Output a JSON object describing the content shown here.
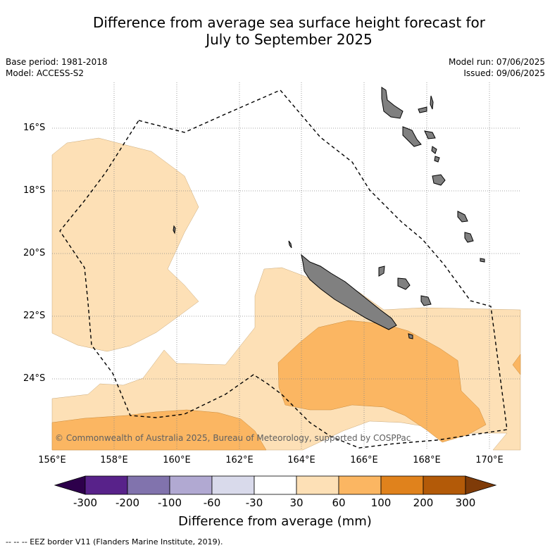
{
  "title_line1": "Difference from average sea surface height forecast for",
  "title_line2": "July to September 2025",
  "base_period": "Base period: 1981-2018",
  "model": "Model: ACCESS-S2",
  "model_run": "Model run: 07/06/2025",
  "issued": "Issued: 09/06/2025",
  "lat_labels": [
    "16°S",
    "18°S",
    "20°S",
    "22°S",
    "24°S"
  ],
  "lon_labels": [
    "156°E",
    "158°E",
    "160°E",
    "162°E",
    "164°E",
    "166°E",
    "168°E",
    "170°E"
  ],
  "copyright": "© Commonwealth of Australia 2025, Bureau of Meteorology, supported by COSPPac",
  "colorbar": {
    "ticks": [
      "-300",
      "-200",
      "-100",
      "-60",
      "-30",
      "30",
      "60",
      "100",
      "200",
      "300"
    ],
    "colors": [
      "#58228a",
      "#8173ad",
      "#b1a9d2",
      "#d9daeb",
      "#ffffff",
      "#fde0b6",
      "#fbb662",
      "#e0821c",
      "#b35a08"
    ],
    "under_color": "#2d004b",
    "over_color": "#7f3b08",
    "label": "Difference from average (mm)"
  },
  "colors": {
    "land": "#808080",
    "band_30_60": "#fde0b6",
    "band_60_100": "#fbb662",
    "eez_border": "#000000"
  },
  "footnote": "--  --  -- EEZ border V11 (Flanders Marine Institute, 2019)."
}
